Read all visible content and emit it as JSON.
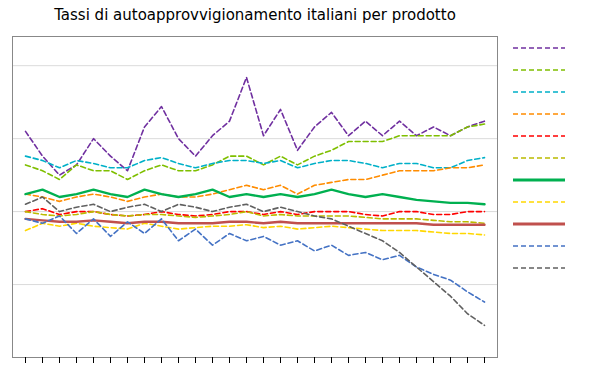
{
  "chart_data": {
    "type": "line",
    "title": "Tassi di autoapprovvigionamento italiani per prodotto",
    "categories": [
      null,
      null,
      null,
      null,
      null,
      null,
      null,
      null,
      null,
      null,
      null,
      null,
      null,
      null,
      null,
      null,
      null,
      null,
      null,
      null,
      null,
      null,
      null,
      null,
      null,
      null,
      null,
      null
    ],
    "ylim": [
      0,
      220
    ],
    "yticks": [
      0,
      50,
      100,
      150,
      200
    ],
    "grid": true,
    "tick_labels": false,
    "legend": "right",
    "series": [
      {
        "color": "#7030A0",
        "line_style": "dashed",
        "values": [
          155,
          138,
          125,
          132,
          150,
          138,
          128,
          158,
          172,
          150,
          138,
          152,
          162,
          192,
          152,
          170,
          142,
          158,
          168,
          152,
          162,
          152,
          162,
          152,
          158,
          152,
          158,
          162
        ]
      },
      {
        "color": "#7FBF00",
        "line_style": "dashed",
        "values": [
          132,
          128,
          122,
          132,
          128,
          128,
          122,
          128,
          132,
          128,
          128,
          132,
          138,
          138,
          132,
          138,
          132,
          138,
          142,
          148,
          148,
          148,
          152,
          152,
          152,
          152,
          158,
          160
        ]
      },
      {
        "color": "#00B0C8",
        "line_style": "dashed",
        "values": [
          138,
          135,
          130,
          135,
          133,
          130,
          130,
          135,
          137,
          133,
          130,
          133,
          135,
          135,
          133,
          135,
          130,
          133,
          135,
          135,
          133,
          130,
          133,
          133,
          130,
          130,
          135,
          137
        ]
      },
      {
        "color": "#FF8C00",
        "line_style": "dashed",
        "values": [
          112,
          110,
          107,
          110,
          112,
          110,
          107,
          110,
          112,
          110,
          110,
          112,
          115,
          118,
          115,
          118,
          112,
          118,
          120,
          122,
          122,
          125,
          128,
          128,
          128,
          130,
          130,
          132
        ]
      },
      {
        "color": "#FF0000",
        "line_style": "dashed",
        "values": [
          100,
          102,
          98,
          100,
          100,
          98,
          97,
          98,
          100,
          98,
          97,
          98,
          100,
          100,
          98,
          100,
          98,
          100,
          100,
          100,
          98,
          97,
          100,
          100,
          98,
          98,
          100,
          100
        ]
      },
      {
        "color": "#BBBB00",
        "line_style": "dashed",
        "values": [
          100,
          98,
          97,
          98,
          100,
          98,
          97,
          98,
          98,
          97,
          96,
          97,
          98,
          100,
          97,
          98,
          97,
          97,
          97,
          97,
          96,
          95,
          95,
          95,
          94,
          93,
          93,
          92
        ]
      },
      {
        "color": "#00B050",
        "line_style": "solid",
        "values": [
          112,
          115,
          110,
          112,
          115,
          112,
          110,
          115,
          112,
          110,
          112,
          115,
          110,
          112,
          110,
          112,
          110,
          112,
          115,
          112,
          110,
          112,
          110,
          108,
          107,
          106,
          106,
          105
        ]
      },
      {
        "color": "#FFD700",
        "line_style": "dashed",
        "values": [
          87,
          92,
          90,
          92,
          90,
          89,
          88,
          92,
          90,
          88,
          89,
          90,
          90,
          91,
          89,
          90,
          88,
          89,
          90,
          89,
          88,
          87,
          87,
          87,
          86,
          85,
          85,
          84
        ]
      },
      {
        "color": "#C0504D",
        "line_style": "solid",
        "values": [
          95,
          94,
          93,
          93,
          94,
          93,
          92,
          93,
          93,
          92,
          92,
          92,
          93,
          93,
          92,
          93,
          92,
          92,
          92,
          92,
          92,
          92,
          92,
          92,
          91,
          91,
          91,
          91
        ]
      },
      {
        "color": "#4472C4",
        "line_style": "dashed",
        "values": [
          95,
          92,
          97,
          85,
          95,
          83,
          93,
          85,
          95,
          80,
          88,
          77,
          85,
          80,
          83,
          77,
          80,
          73,
          77,
          70,
          72,
          67,
          70,
          62,
          57,
          53,
          45,
          38
        ]
      },
      {
        "color": "#606060",
        "line_style": "dashed",
        "values": [
          105,
          110,
          100,
          103,
          105,
          100,
          103,
          105,
          100,
          105,
          103,
          100,
          103,
          105,
          100,
          103,
          100,
          97,
          95,
          90,
          85,
          80,
          72,
          62,
          52,
          42,
          30,
          22
        ]
      }
    ]
  }
}
